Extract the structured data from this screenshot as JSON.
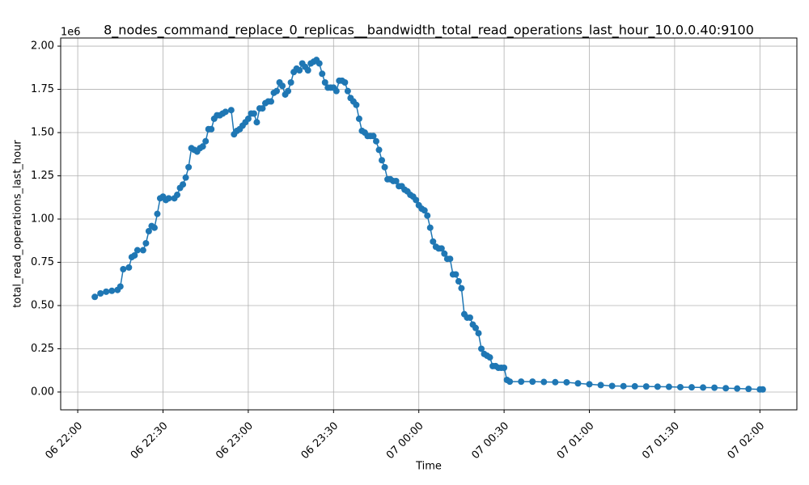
{
  "chart_data": {
    "type": "line",
    "title": "8_nodes_command_replace_0_replicas__bandwidth_total_read_operations_last_hour_10.0.0.40:9100",
    "x_label": "Time",
    "y_label": "total_read_operations_last_hour",
    "y_offset_label": "1e6",
    "grid": true,
    "marker": true,
    "xlim": [
      "06 21:54",
      "07 02:13"
    ],
    "xticks": [
      "06 22:00",
      "06 22:30",
      "06 23:00",
      "06 23:30",
      "07 00:00",
      "07 00:30",
      "07 01:00",
      "07 01:30",
      "07 02:00"
    ],
    "ylim": [
      -0.103,
      2.047
    ],
    "yticks": [
      {
        "value": 0,
        "label": "0.00"
      },
      0.25,
      {
        "value": 0.5,
        "label": "0.50"
      },
      0.75,
      {
        "value": 1,
        "label": "1.00"
      },
      1.25,
      {
        "value": 1.5,
        "label": "1.50"
      },
      1.75,
      {
        "value": 2,
        "label": "2.00"
      }
    ],
    "x": [
      "06 22:06",
      "06 22:08",
      "06 22:10",
      "06 22:12",
      "06 22:14",
      "06 22:15",
      "06 22:16",
      "06 22:18",
      "06 22:19",
      "06 22:20",
      "06 22:21",
      "06 22:23",
      "06 22:24",
      "06 22:25",
      "06 22:26",
      "06 22:27",
      "06 22:28",
      "06 22:29",
      "06 22:30",
      "06 22:31",
      "06 22:32",
      "06 22:34",
      "06 22:35",
      "06 22:36",
      "06 22:37",
      "06 22:38",
      "06 22:39",
      "06 22:40",
      "06 22:41",
      "06 22:42",
      "06 22:43",
      "06 22:44",
      "06 22:45",
      "06 22:46",
      "06 22:47",
      "06 22:48",
      "06 22:49",
      "06 22:50",
      "06 22:51",
      "06 22:52",
      "06 22:54",
      "06 22:55",
      "06 22:56",
      "06 22:57",
      "06 22:58",
      "06 22:59",
      "06 23:00",
      "06 23:01",
      "06 23:02",
      "06 23:03",
      "06 23:04",
      "06 23:05",
      "06 23:06",
      "06 23:07",
      "06 23:08",
      "06 23:09",
      "06 23:10",
      "06 23:11",
      "06 23:12",
      "06 23:13",
      "06 23:14",
      "06 23:15",
      "06 23:16",
      "06 23:17",
      "06 23:18",
      "06 23:19",
      "06 23:20",
      "06 23:21",
      "06 23:22",
      "06 23:23",
      "06 23:24",
      "06 23:25",
      "06 23:26",
      "06 23:27",
      "06 23:28",
      "06 23:29",
      "06 23:30",
      "06 23:31",
      "06 23:32",
      "06 23:33",
      "06 23:34",
      "06 23:35",
      "06 23:36",
      "06 23:37",
      "06 23:38",
      "06 23:39",
      "06 23:40",
      "06 23:41",
      "06 23:42",
      "06 23:43",
      "06 23:44",
      "06 23:45",
      "06 23:46",
      "06 23:47",
      "06 23:48",
      "06 23:49",
      "06 23:50",
      "06 23:51",
      "06 23:52",
      "06 23:53",
      "06 23:54",
      "06 23:55",
      "06 23:56",
      "06 23:57",
      "06 23:58",
      "06 23:59",
      "07 00:00",
      "07 00:01",
      "07 00:02",
      "07 00:03",
      "07 00:04",
      "07 00:05",
      "07 00:06",
      "07 00:07",
      "07 00:08",
      "07 00:09",
      "07 00:10",
      "07 00:11",
      "07 00:12",
      "07 00:13",
      "07 00:14",
      "07 00:15",
      "07 00:16",
      "07 00:17",
      "07 00:18",
      "07 00:19",
      "07 00:20",
      "07 00:21",
      "07 00:22",
      "07 00:23",
      "07 00:24",
      "07 00:25",
      "07 00:26",
      "07 00:27",
      "07 00:28",
      "07 00:29",
      "07 00:30",
      "07 00:31",
      "07 00:32",
      "07 00:36",
      "07 00:40",
      "07 00:44",
      "07 00:48",
      "07 00:52",
      "07 00:56",
      "07 01:00",
      "07 01:04",
      "07 01:08",
      "07 01:12",
      "07 01:16",
      "07 01:20",
      "07 01:24",
      "07 01:28",
      "07 01:32",
      "07 01:36",
      "07 01:40",
      "07 01:44",
      "07 01:48",
      "07 01:52",
      "07 01:56",
      "07 02:00",
      "07 02:01"
    ],
    "series": [
      {
        "name": "total_read_operations_last_hour",
        "color": "#1f77b4",
        "values": [
          0.55,
          0.57,
          0.58,
          0.585,
          0.59,
          0.61,
          0.71,
          0.72,
          0.78,
          0.79,
          0.82,
          0.82,
          0.86,
          0.93,
          0.96,
          0.95,
          1.03,
          1.12,
          1.13,
          1.11,
          1.12,
          1.12,
          1.14,
          1.18,
          1.2,
          1.24,
          1.3,
          1.41,
          1.4,
          1.39,
          1.41,
          1.42,
          1.45,
          1.52,
          1.52,
          1.58,
          1.6,
          1.6,
          1.61,
          1.62,
          1.63,
          1.49,
          1.51,
          1.52,
          1.54,
          1.56,
          1.58,
          1.61,
          1.61,
          1.56,
          1.64,
          1.64,
          1.67,
          1.68,
          1.68,
          1.73,
          1.74,
          1.79,
          1.77,
          1.72,
          1.74,
          1.79,
          1.85,
          1.87,
          1.86,
          1.9,
          1.88,
          1.86,
          1.9,
          1.91,
          1.92,
          1.9,
          1.84,
          1.79,
          1.76,
          1.76,
          1.76,
          1.74,
          1.8,
          1.8,
          1.79,
          1.74,
          1.7,
          1.68,
          1.66,
          1.58,
          1.51,
          1.5,
          1.48,
          1.48,
          1.48,
          1.45,
          1.4,
          1.34,
          1.3,
          1.23,
          1.23,
          1.22,
          1.22,
          1.19,
          1.19,
          1.17,
          1.16,
          1.14,
          1.13,
          1.11,
          1.08,
          1.06,
          1.05,
          1.02,
          0.95,
          0.87,
          0.84,
          0.83,
          0.83,
          0.8,
          0.77,
          0.77,
          0.68,
          0.68,
          0.64,
          0.6,
          0.45,
          0.43,
          0.43,
          0.39,
          0.37,
          0.34,
          0.25,
          0.22,
          0.21,
          0.2,
          0.15,
          0.15,
          0.14,
          0.14,
          0.14,
          0.07,
          0.06,
          0.06,
          0.06,
          0.058,
          0.057,
          0.056,
          0.05,
          0.045,
          0.04,
          0.035,
          0.034,
          0.033,
          0.032,
          0.031,
          0.03,
          0.028,
          0.027,
          0.026,
          0.025,
          0.022,
          0.02,
          0.018,
          0.015,
          0.015
        ]
      }
    ]
  }
}
